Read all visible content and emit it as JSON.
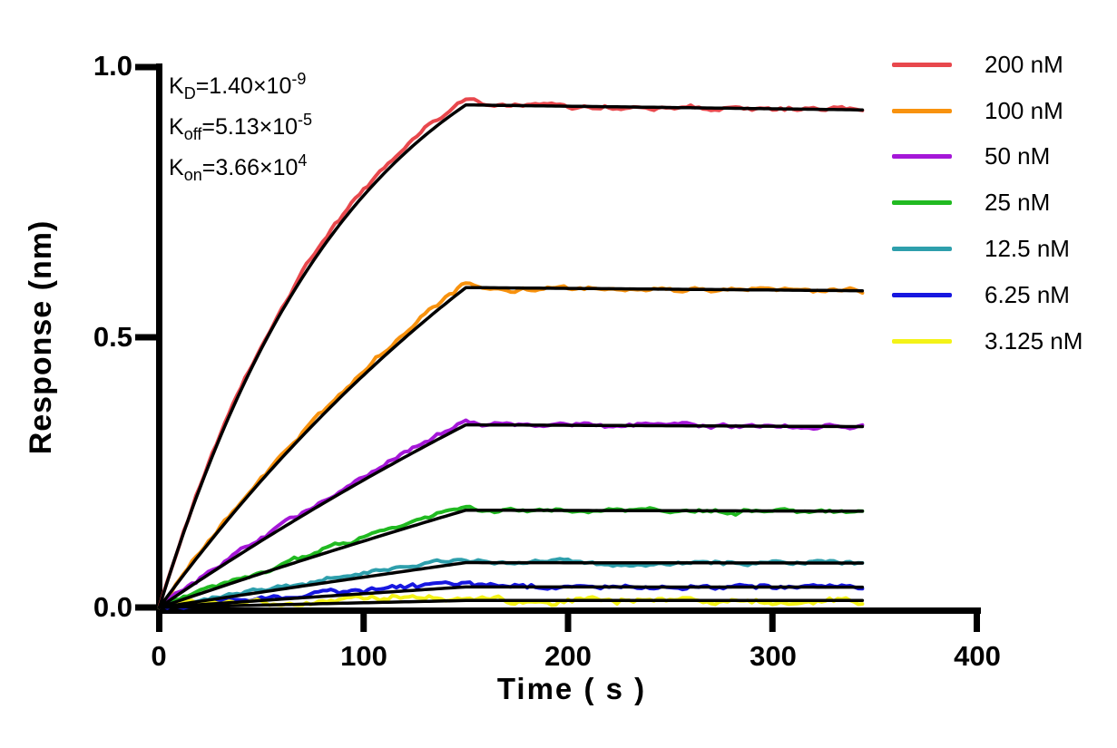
{
  "figure": {
    "background": "#FFFFFF",
    "annotations": {
      "lines": [
        {
          "base": "K",
          "sub": "D",
          "value": "=1.40×10",
          "exp": "-9"
        },
        {
          "base": "K",
          "sub": "off",
          "value": "=5.13×10",
          "exp": "-5"
        },
        {
          "base": "K",
          "sub": "on",
          "value": "=3.66×10",
          "exp": "4"
        }
      ]
    }
  },
  "chart_data": {
    "type": "line",
    "title": "",
    "xlabel": "Time ( s )",
    "ylabel": "Response (nm)",
    "xlim": [
      0,
      400
    ],
    "ylim": [
      0.0,
      1.0
    ],
    "x_ticks": [
      0,
      100,
      200,
      300,
      400
    ],
    "x_tick_labels": [
      "0",
      "100",
      "200",
      "300",
      "400"
    ],
    "y_ticks": [
      0.0,
      0.5,
      1.0
    ],
    "y_tick_labels": [
      "0.0",
      "0.5",
      "1.0"
    ],
    "grid": false,
    "legend_position": "right-outside",
    "axis_color": "#000000",
    "fit_color": "#000000",
    "kinetics": {
      "KD_M": 1.4e-09,
      "koff_per_s": 5.13e-05,
      "kon_per_M_s": 36600,
      "association_end_s": 150,
      "trace_end_s": 344
    },
    "series": [
      {
        "label": "200 nM",
        "concentration_nM": 200,
        "color": "#E8484D",
        "k_obs_per_s": 0.0105,
        "response_at_150s_nm": 0.93,
        "noise_nm": 0.005,
        "data_above_fit_nm": 0.012
      },
      {
        "label": "100 nM",
        "concentration_nM": 100,
        "color": "#F8920E",
        "k_obs_per_s": 0.00371,
        "response_at_150s_nm": 0.592,
        "noise_nm": 0.005,
        "data_above_fit_nm": 0.01
      },
      {
        "label": "50 nM",
        "concentration_nM": 50,
        "color": "#A517D8",
        "k_obs_per_s": 0.00188,
        "response_at_150s_nm": 0.338,
        "noise_nm": 0.005,
        "data_above_fit_nm": 0.008
      },
      {
        "label": "25 nM",
        "concentration_nM": 25,
        "color": "#21BA21",
        "k_obs_per_s": 0.00097,
        "response_at_150s_nm": 0.18,
        "noise_nm": 0.005,
        "data_above_fit_nm": 0.007
      },
      {
        "label": "12.5 nM",
        "concentration_nM": 12.5,
        "color": "#2E9FAC",
        "k_obs_per_s": 0.00051,
        "response_at_150s_nm": 0.083,
        "noise_nm": 0.0055,
        "data_above_fit_nm": 0.009
      },
      {
        "label": "6.25 nM",
        "concentration_nM": 6.25,
        "color": "#1717E0",
        "k_obs_per_s": 0.00028,
        "response_at_150s_nm": 0.038,
        "noise_nm": 0.0055,
        "data_above_fit_nm": 0.007
      },
      {
        "label": "3.125 nM",
        "concentration_nM": 3.125,
        "color": "#F4F318",
        "k_obs_per_s": 0.000166,
        "response_at_150s_nm": 0.013,
        "noise_nm": 0.007,
        "data_above_fit_nm": 0.008
      }
    ]
  }
}
